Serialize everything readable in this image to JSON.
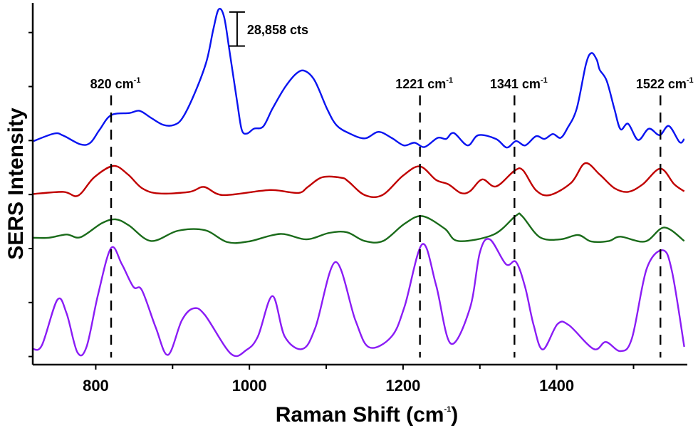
{
  "chart_data": {
    "type": "line",
    "title": "",
    "xlabel": "Raman Shift (cm",
    "xlabel_sup": "-1",
    "xlabel_close": ")",
    "ylabel": "SERS Intensity",
    "xlim": [
      718,
      1570
    ],
    "ylim": [
      -0.15,
      6.55
    ],
    "x_ticks_major": [
      800,
      1000,
      1200,
      1400
    ],
    "x_tick_labels": [
      "800",
      "1000",
      "1200",
      "1400"
    ],
    "x_ticks_minor": [
      900,
      1100,
      1300,
      1500
    ],
    "y_ticks": [
      0,
      1,
      2,
      3,
      4,
      5,
      6
    ],
    "y_tick_labels_shown": false,
    "grid": false,
    "legend": "none",
    "scale_bar": {
      "label": "28,858 cts",
      "x": 984,
      "y_bottom": 5.75,
      "y_top": 6.38
    },
    "peak_markers": [
      {
        "label": "820 cm",
        "sup": "-1",
        "x": 820
      },
      {
        "label": "1221 cm",
        "sup": "-1",
        "x": 1222
      },
      {
        "label": "1341 cm",
        "sup": "-1",
        "x": 1345
      },
      {
        "label": "1522 cm",
        "sup": "-1",
        "x": 1535
      }
    ],
    "series": [
      {
        "color": "#0a14f0",
        "points": [
          [
            719,
            3.99
          ],
          [
            746,
            4.13
          ],
          [
            758,
            4.09
          ],
          [
            780,
            3.93
          ],
          [
            793,
            3.96
          ],
          [
            805,
            4.2
          ],
          [
            820,
            4.47
          ],
          [
            844,
            4.51
          ],
          [
            857,
            4.55
          ],
          [
            872,
            4.42
          ],
          [
            888,
            4.29
          ],
          [
            902,
            4.29
          ],
          [
            913,
            4.42
          ],
          [
            928,
            4.85
          ],
          [
            944,
            5.46
          ],
          [
            953,
            6.06
          ],
          [
            960,
            6.43
          ],
          [
            967,
            6.29
          ],
          [
            974,
            5.67
          ],
          [
            984,
            4.72
          ],
          [
            990,
            4.2
          ],
          [
            997,
            4.13
          ],
          [
            1006,
            4.22
          ],
          [
            1018,
            4.26
          ],
          [
            1030,
            4.59
          ],
          [
            1046,
            4.98
          ],
          [
            1061,
            5.24
          ],
          [
            1072,
            5.29
          ],
          [
            1085,
            5.11
          ],
          [
            1101,
            4.59
          ],
          [
            1113,
            4.29
          ],
          [
            1129,
            4.14
          ],
          [
            1150,
            4.04
          ],
          [
            1168,
            4.16
          ],
          [
            1185,
            4.05
          ],
          [
            1201,
            3.91
          ],
          [
            1215,
            3.96
          ],
          [
            1228,
            3.88
          ],
          [
            1245,
            4.05
          ],
          [
            1256,
            4.03
          ],
          [
            1266,
            4.14
          ],
          [
            1284,
            3.91
          ],
          [
            1298,
            4.1
          ],
          [
            1321,
            4.03
          ],
          [
            1335,
            3.87
          ],
          [
            1347,
            3.99
          ],
          [
            1359,
            3.91
          ],
          [
            1373,
            4.08
          ],
          [
            1384,
            4.03
          ],
          [
            1395,
            4.12
          ],
          [
            1405,
            4.05
          ],
          [
            1414,
            4.23
          ],
          [
            1426,
            4.59
          ],
          [
            1438,
            5.41
          ],
          [
            1445,
            5.62
          ],
          [
            1452,
            5.5
          ],
          [
            1456,
            5.31
          ],
          [
            1465,
            5.11
          ],
          [
            1475,
            4.59
          ],
          [
            1483,
            4.21
          ],
          [
            1493,
            4.31
          ],
          [
            1506,
            4.01
          ],
          [
            1520,
            4.22
          ],
          [
            1534,
            4.1
          ],
          [
            1546,
            4.27
          ],
          [
            1560,
            3.97
          ],
          [
            1566,
            4.03
          ]
        ]
      },
      {
        "color": "#c00000",
        "points": [
          [
            719,
            3.01
          ],
          [
            758,
            3.05
          ],
          [
            777,
            2.98
          ],
          [
            798,
            3.32
          ],
          [
            823,
            3.53
          ],
          [
            842,
            3.37
          ],
          [
            860,
            3.12
          ],
          [
            882,
            3.02
          ],
          [
            922,
            3.05
          ],
          [
            941,
            3.14
          ],
          [
            965,
            2.99
          ],
          [
            1015,
            3.07
          ],
          [
            1034,
            3.08
          ],
          [
            1064,
            3.03
          ],
          [
            1076,
            3.14
          ],
          [
            1095,
            3.32
          ],
          [
            1120,
            3.31
          ],
          [
            1129,
            3.24
          ],
          [
            1150,
            2.99
          ],
          [
            1173,
            2.99
          ],
          [
            1200,
            3.35
          ],
          [
            1222,
            3.52
          ],
          [
            1243,
            3.27
          ],
          [
            1259,
            3.19
          ],
          [
            1275,
            3.03
          ],
          [
            1287,
            3.06
          ],
          [
            1303,
            3.28
          ],
          [
            1321,
            3.15
          ],
          [
            1345,
            3.44
          ],
          [
            1356,
            3.45
          ],
          [
            1373,
            3.08
          ],
          [
            1391,
            2.99
          ],
          [
            1419,
            3.22
          ],
          [
            1437,
            3.58
          ],
          [
            1456,
            3.37
          ],
          [
            1475,
            3.12
          ],
          [
            1493,
            3.05
          ],
          [
            1512,
            3.19
          ],
          [
            1535,
            3.48
          ],
          [
            1553,
            3.19
          ],
          [
            1566,
            3.06
          ]
        ]
      },
      {
        "color": "#1a6b1a",
        "points": [
          [
            718,
            2.2
          ],
          [
            739,
            2.2
          ],
          [
            762,
            2.26
          ],
          [
            780,
            2.21
          ],
          [
            808,
            2.47
          ],
          [
            826,
            2.54
          ],
          [
            843,
            2.43
          ],
          [
            872,
            2.14
          ],
          [
            907,
            2.33
          ],
          [
            942,
            2.34
          ],
          [
            971,
            2.12
          ],
          [
            999,
            2.13
          ],
          [
            1040,
            2.27
          ],
          [
            1074,
            2.17
          ],
          [
            1104,
            2.29
          ],
          [
            1127,
            2.3
          ],
          [
            1150,
            2.14
          ],
          [
            1174,
            2.14
          ],
          [
            1202,
            2.46
          ],
          [
            1225,
            2.6
          ],
          [
            1254,
            2.37
          ],
          [
            1272,
            2.14
          ],
          [
            1318,
            2.26
          ],
          [
            1347,
            2.61
          ],
          [
            1355,
            2.6
          ],
          [
            1378,
            2.21
          ],
          [
            1405,
            2.17
          ],
          [
            1428,
            2.25
          ],
          [
            1445,
            2.13
          ],
          [
            1468,
            2.14
          ],
          [
            1483,
            2.22
          ],
          [
            1515,
            2.13
          ],
          [
            1540,
            2.39
          ],
          [
            1566,
            2.14
          ]
        ]
      },
      {
        "color": "#8a1cf5",
        "points": [
          [
            718,
            0.14
          ],
          [
            730,
            0.21
          ],
          [
            750,
            1.05
          ],
          [
            762,
            0.8
          ],
          [
            776,
            0.08
          ],
          [
            788,
            0.18
          ],
          [
            803,
            1.15
          ],
          [
            820,
            2.01
          ],
          [
            834,
            1.71
          ],
          [
            849,
            1.29
          ],
          [
            860,
            1.23
          ],
          [
            878,
            0.54
          ],
          [
            894,
            0.03
          ],
          [
            912,
            0.67
          ],
          [
            927,
            0.89
          ],
          [
            942,
            0.77
          ],
          [
            976,
            0.05
          ],
          [
            996,
            0.12
          ],
          [
            1011,
            0.37
          ],
          [
            1030,
            1.12
          ],
          [
            1046,
            0.37
          ],
          [
            1069,
            0.14
          ],
          [
            1086,
            0.54
          ],
          [
            1112,
            1.75
          ],
          [
            1138,
            0.67
          ],
          [
            1156,
            0.17
          ],
          [
            1185,
            0.37
          ],
          [
            1202,
            0.93
          ],
          [
            1225,
            2.08
          ],
          [
            1243,
            1.32
          ],
          [
            1262,
            0.24
          ],
          [
            1287,
            0.89
          ],
          [
            1300,
            1.93
          ],
          [
            1313,
            2.17
          ],
          [
            1334,
            1.71
          ],
          [
            1347,
            1.75
          ],
          [
            1359,
            1.28
          ],
          [
            1370,
            0.58
          ],
          [
            1382,
            0.13
          ],
          [
            1401,
            0.6
          ],
          [
            1416,
            0.58
          ],
          [
            1448,
            0.14
          ],
          [
            1464,
            0.27
          ],
          [
            1483,
            0.1
          ],
          [
            1498,
            0.34
          ],
          [
            1517,
            1.62
          ],
          [
            1538,
            1.97
          ],
          [
            1550,
            1.58
          ],
          [
            1566,
            0.18
          ]
        ]
      }
    ]
  }
}
